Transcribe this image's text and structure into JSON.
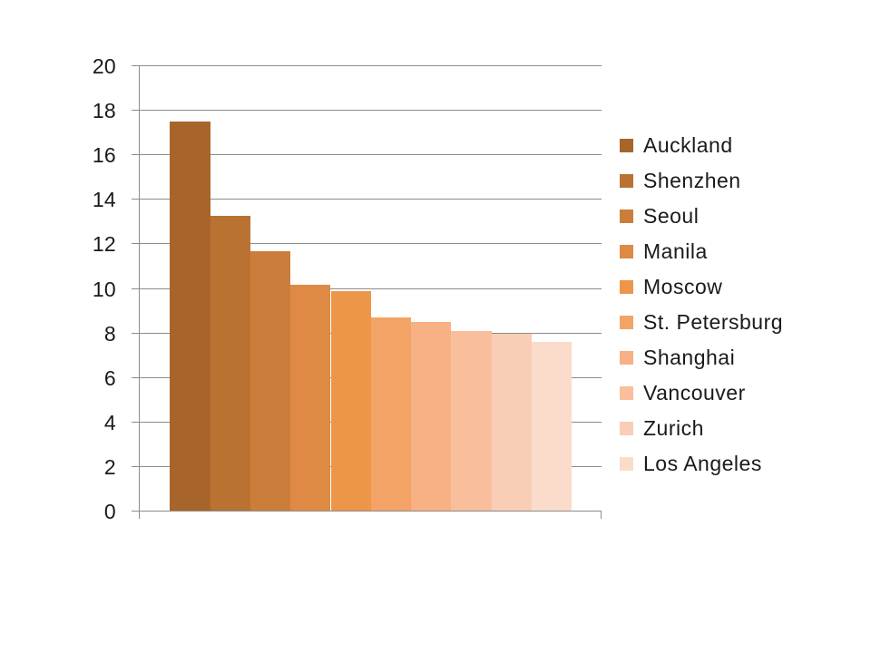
{
  "chart_data": {
    "type": "bar",
    "title": "",
    "xlabel": "",
    "ylabel": "",
    "categories": [
      "Auckland",
      "Shenzhen",
      "Seoul",
      "Manila",
      "Moscow",
      "St. Petersburg",
      "Shanghai",
      "Vancouver",
      "Zurich",
      "Los Angeles"
    ],
    "values": [
      17.5,
      13.3,
      11.7,
      10.2,
      9.9,
      8.7,
      8.5,
      8.1,
      8.0,
      7.6
    ],
    "bar_colors": [
      "#A8652B",
      "#B97231",
      "#CB7E3B",
      "#DE8A44",
      "#ED964A",
      "#F4A366",
      "#F7B184",
      "#F9BF9D",
      "#FACDB6",
      "#FBDCCB"
    ],
    "ylim": [
      0,
      20
    ],
    "yticks": [
      0,
      2,
      4,
      6,
      8,
      10,
      12,
      14,
      16,
      18,
      20
    ],
    "grid": true,
    "legend_position": "right",
    "colors": {
      "axis": "#8C8C8C",
      "gridline": "#8C8C8C",
      "text": "#1A1A1A",
      "background": "#FFFFFF"
    }
  }
}
